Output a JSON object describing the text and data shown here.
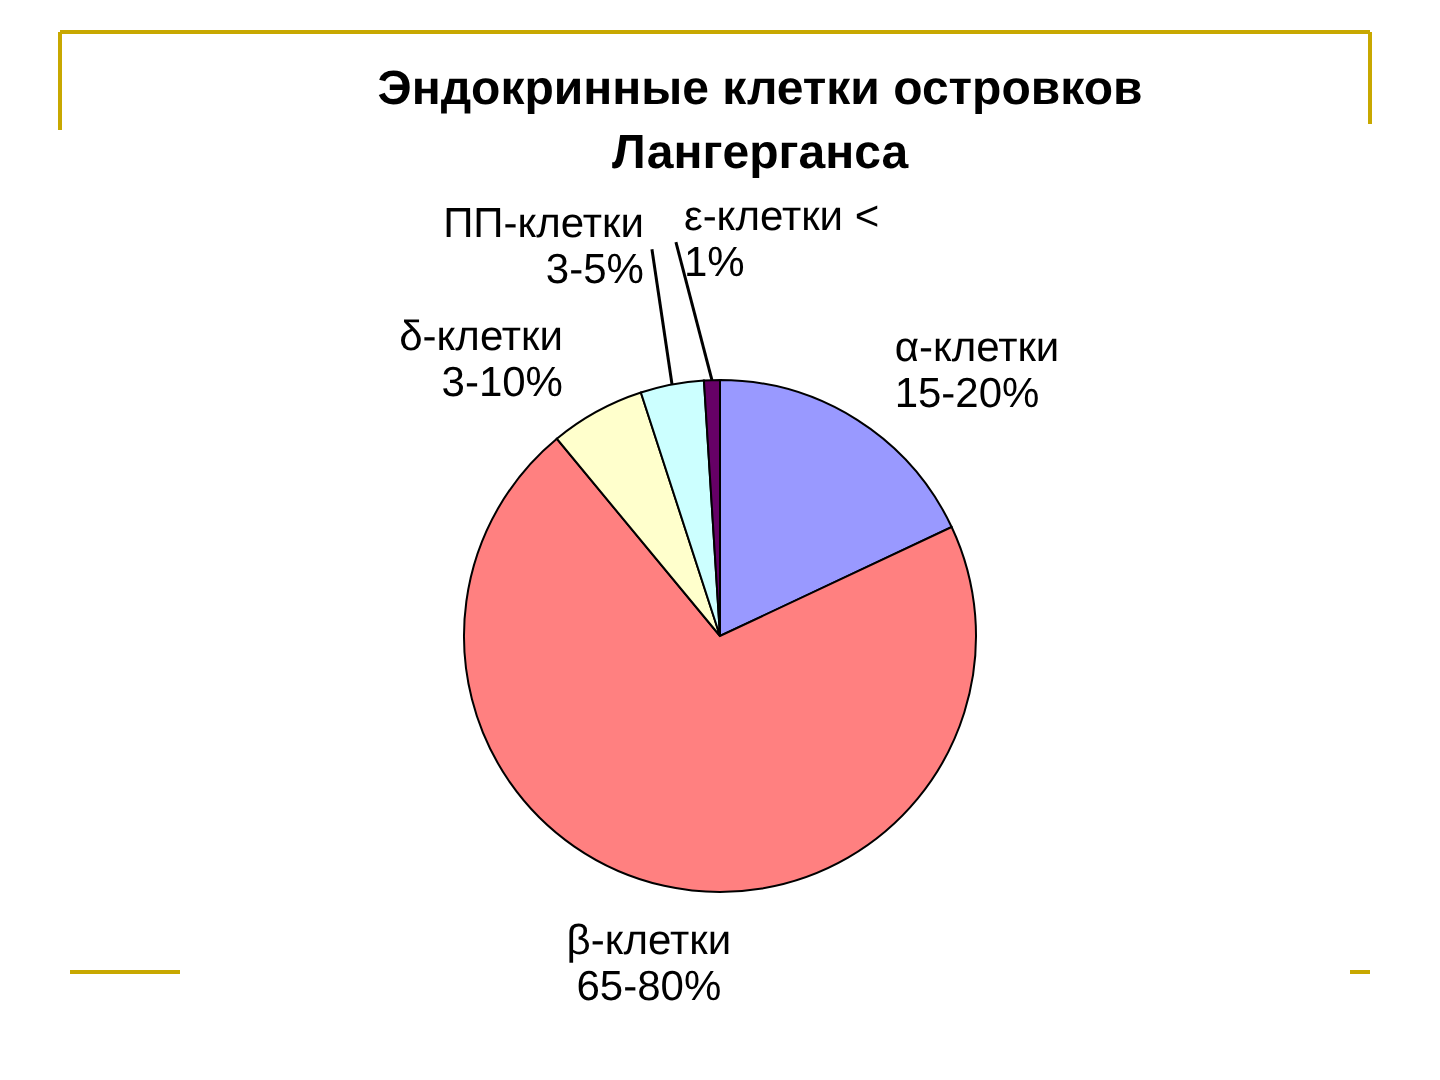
{
  "chart_data": {
    "type": "pie",
    "title": "Эндокринные клетки островков Лангерганса",
    "categories": [
      "α-клетки 15-20%",
      "β-клетки 65-80%",
      "δ-клетки 3-10%",
      "ПП-клетки 3-5%",
      "ε-клетки < 1%"
    ],
    "values": [
      18,
      71,
      6,
      4,
      1
    ],
    "colors": [
      "#9999ff",
      "#ff8080",
      "#ffffcc",
      "#ccffff",
      "#660066"
    ]
  }
}
